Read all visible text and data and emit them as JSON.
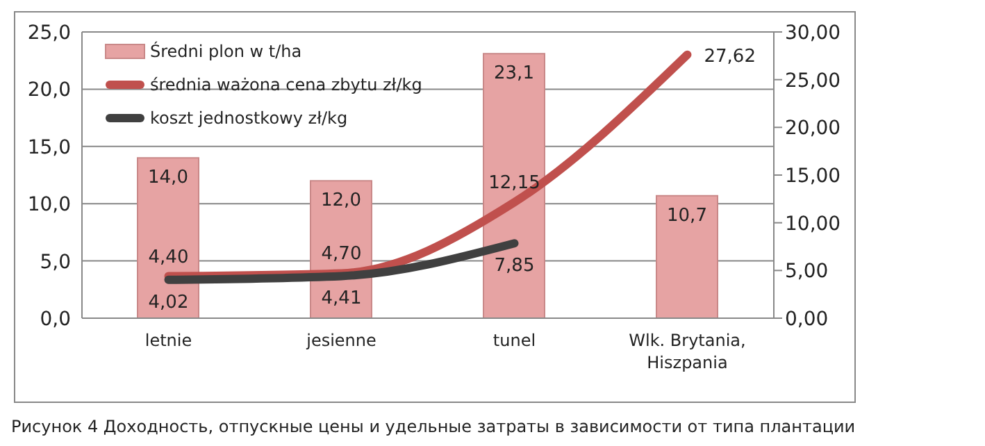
{
  "chart_data": {
    "type": "bar",
    "categories": [
      "letnie",
      "jesienne",
      "tunel",
      "Wlk. Brytania, Hiszpania"
    ],
    "series": [
      {
        "name": "Średni plon w t/ha",
        "color": "#e6a3a3",
        "values": [
          14.0,
          12.0,
          23.1,
          10.7
        ],
        "value_labels": [
          "14,0",
          "12,0",
          "23,1",
          "10,7"
        ]
      },
      {
        "name": "średnia ważona cena zbytu zł/kg",
        "type": "line",
        "axis": "y2",
        "color": "#c0504d",
        "values": [
          4.4,
          4.7,
          12.15,
          27.62
        ],
        "value_labels": [
          "4,40",
          "4,70",
          "12,15",
          "27,62"
        ]
      },
      {
        "name": "koszt jednostkowy zł/kg",
        "type": "line",
        "axis": "y2",
        "color": "#404040",
        "values": [
          4.02,
          4.41,
          7.85,
          null
        ],
        "value_labels": [
          "4,02",
          "4,41",
          "7,85",
          null
        ]
      }
    ],
    "ylim": [
      0,
      25
    ],
    "yticks": [
      {
        "value": 0,
        "label": "0,0"
      },
      {
        "value": 5,
        "label": "5,0"
      },
      {
        "value": 10,
        "label": "10,0"
      },
      {
        "value": 15,
        "label": "15,0"
      },
      {
        "value": 20,
        "label": "20,0"
      },
      {
        "value": 25,
        "label": "25,0"
      }
    ],
    "y2lim": [
      0,
      30
    ],
    "y2ticks": [
      {
        "value": 0,
        "label": "0,00"
      },
      {
        "value": 5,
        "label": "5,00"
      },
      {
        "value": 10,
        "label": "10,00"
      },
      {
        "value": 15,
        "label": "15,00"
      },
      {
        "value": 20,
        "label": "20,00"
      },
      {
        "value": 25,
        "label": "25,00"
      },
      {
        "value": 30,
        "label": "30,00"
      }
    ],
    "grid": "y",
    "legend": "top left",
    "marker": "none",
    "line_style": "solid",
    "annotations": [
      "Рисунок 4 Доходность, отпускные цены и удельные затраты в зависимости от типа плантации"
    ]
  }
}
